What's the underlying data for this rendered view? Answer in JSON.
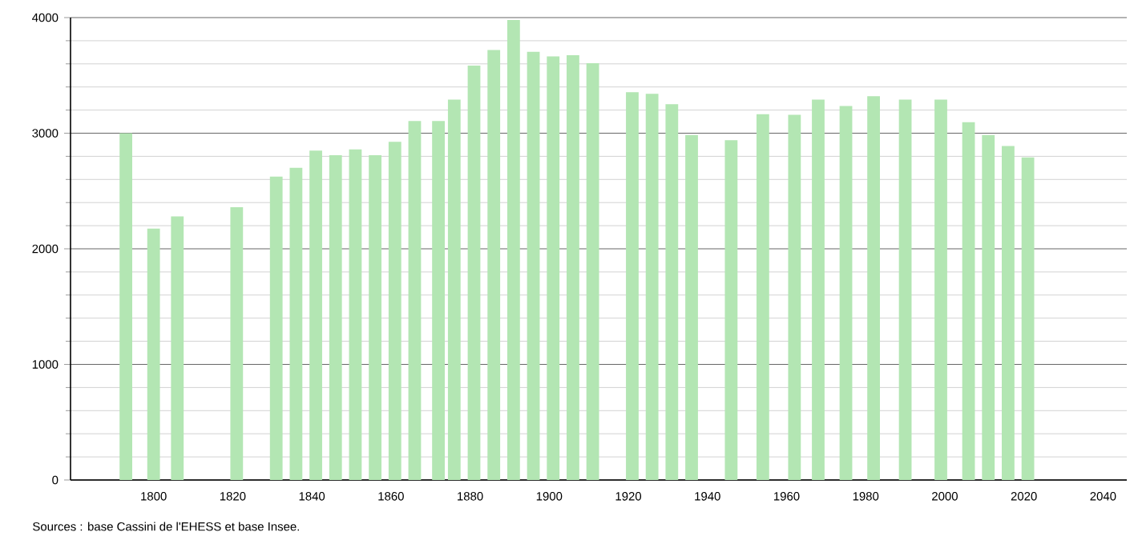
{
  "chart_data": {
    "type": "bar",
    "annotations": [
      "Sources : base Cassini de l'EHESS et base Insee."
    ],
    "x": [
      1793,
      1800,
      1806,
      1821,
      1831,
      1836,
      1841,
      1846,
      1851,
      1856,
      1861,
      1866,
      1872,
      1876,
      1881,
      1886,
      1891,
      1896,
      1901,
      1906,
      1911,
      1921,
      1926,
      1931,
      1936,
      1946,
      1954,
      1962,
      1968,
      1975,
      1982,
      1990,
      1999,
      2006,
      2011,
      2016,
      2021
    ],
    "values": [
      3000,
      2175,
      2280,
      2360,
      2625,
      2700,
      2850,
      2810,
      2860,
      2810,
      2925,
      3105,
      3105,
      3290,
      3585,
      3720,
      3980,
      3705,
      3665,
      3675,
      3605,
      3355,
      3340,
      3250,
      2985,
      2940,
      3165,
      3160,
      3290,
      3235,
      3320,
      3290,
      3290,
      3095,
      2985,
      2890,
      2790
    ],
    "color": "#b3e6b3",
    "xlim": [
      1779,
      2046
    ],
    "ylim": [
      0,
      4000
    ],
    "xticks": [
      1800,
      1820,
      1840,
      1860,
      1880,
      1900,
      1920,
      1940,
      1960,
      1980,
      2000,
      2020,
      2040
    ],
    "yticks": [
      0,
      1000,
      2000,
      3000,
      4000
    ],
    "grid": "y"
  }
}
